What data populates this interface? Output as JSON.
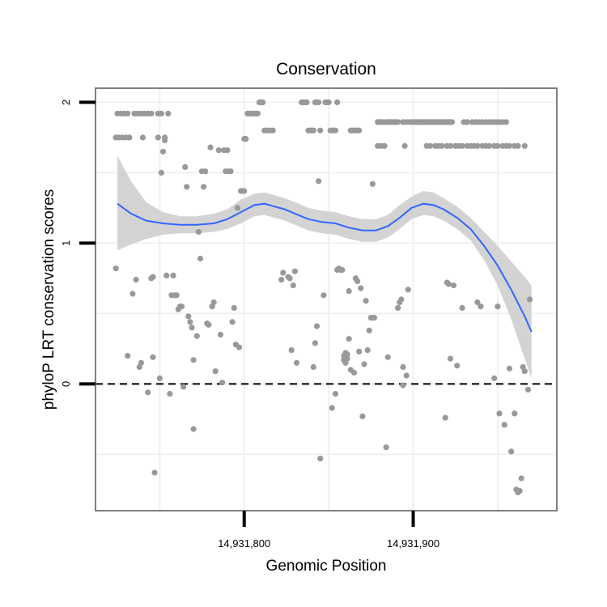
{
  "chart_data": {
    "type": "scatter",
    "title": "Conservation",
    "xlabel": "Genomic Position",
    "ylabel": "phyloP LRT conservation scores",
    "xlim": [
      14931712,
      14931985
    ],
    "ylim": [
      -0.9,
      2.1
    ],
    "x_ticks": [
      {
        "value": 14931800,
        "label": "14,931,800"
      },
      {
        "value": 14931900,
        "label": "14,931,900"
      }
    ],
    "y_ticks": [
      {
        "value": 0,
        "label": "0"
      },
      {
        "value": 1,
        "label": "1"
      },
      {
        "value": 2,
        "label": "2"
      }
    ],
    "grid": true,
    "reference_line": {
      "y": 0,
      "style": "dashed"
    },
    "colors": {
      "points": "#999999",
      "smooth_line": "#3366ff",
      "confidence_band": "#d3d3d3",
      "panel_border": "#7f7f7f",
      "grid": "#f0f0f0",
      "reference_line": "#000000"
    },
    "points": [
      [
        14931725,
        1.92
      ],
      [
        14931727,
        1.92
      ],
      [
        14931729,
        1.92
      ],
      [
        14931731,
        1.92
      ],
      [
        14931735,
        1.92
      ],
      [
        14931737,
        1.92
      ],
      [
        14931739,
        1.92
      ],
      [
        14931741,
        1.92
      ],
      [
        14931743,
        1.92
      ],
      [
        14931745,
        1.92
      ],
      [
        14931749,
        1.92
      ],
      [
        14931751,
        1.92
      ],
      [
        14931755,
        1.92
      ],
      [
        14931724,
        1.75
      ],
      [
        14931726,
        1.75
      ],
      [
        14931728,
        1.75
      ],
      [
        14931730,
        1.75
      ],
      [
        14931732,
        1.75
      ],
      [
        14931740,
        1.75
      ],
      [
        14931749,
        1.75
      ],
      [
        14931753,
        1.75
      ],
      [
        14931724,
        0.82
      ],
      [
        14931731,
        0.2
      ],
      [
        14931734,
        0.64
      ],
      [
        14931736,
        0.74
      ],
      [
        14931738,
        0.12
      ],
      [
        14931739,
        0.15
      ],
      [
        14931743,
        -0.06
      ],
      [
        14931745,
        0.75
      ],
      [
        14931746,
        0.76
      ],
      [
        14931746,
        0.19
      ],
      [
        14931747,
        -0.63
      ],
      [
        14931750,
        0.04
      ],
      [
        14931751,
        1.5
      ],
      [
        14931752,
        1.65
      ],
      [
        14931753,
        1.73
      ],
      [
        14931754,
        0.77
      ],
      [
        14931756,
        -0.07
      ],
      [
        14931757,
        0.63
      ],
      [
        14931758,
        0.77
      ],
      [
        14931759,
        0.63
      ],
      [
        14931760,
        0.63
      ],
      [
        14931761,
        0.53
      ],
      [
        14931762,
        0.55
      ],
      [
        14931763,
        0.55
      ],
      [
        14931764,
        -0.02
      ],
      [
        14931765,
        1.54
      ],
      [
        14931766,
        1.4
      ],
      [
        14931767,
        0.48
      ],
      [
        14931768,
        0.44
      ],
      [
        14931769,
        0.4
      ],
      [
        14931770,
        -0.32
      ],
      [
        14931770,
        0.17
      ],
      [
        14931772,
        0.34
      ],
      [
        14931773,
        1.08
      ],
      [
        14931774,
        0.89
      ],
      [
        14931775,
        1.51
      ],
      [
        14931776,
        1.4
      ],
      [
        14931777,
        1.51
      ],
      [
        14931778,
        0.43
      ],
      [
        14931779,
        0.42
      ],
      [
        14931780,
        1.68
      ],
      [
        14931781,
        0.55
      ],
      [
        14931782,
        0.58
      ],
      [
        14931783,
        0.09
      ],
      [
        14931785,
        1.66
      ],
      [
        14931786,
        0.35
      ],
      [
        14931787,
        0.01
      ],
      [
        14931788,
        1.66
      ],
      [
        14931789,
        1.51
      ],
      [
        14931790,
        1.66
      ],
      [
        14931791,
        1.51
      ],
      [
        14931792,
        1.51
      ],
      [
        14931793,
        0.44
      ],
      [
        14931794,
        0.54
      ],
      [
        14931795,
        0.28
      ],
      [
        14931796,
        1.25
      ],
      [
        14931797,
        0.26
      ],
      [
        14931798,
        1.37
      ],
      [
        14931799,
        1.37
      ],
      [
        14931800,
        1.37
      ],
      [
        14931800,
        1.74
      ],
      [
        14931801,
        1.74
      ],
      [
        14931802,
        1.92
      ],
      [
        14931803,
        1.92
      ],
      [
        14931804,
        1.92
      ],
      [
        14931805,
        1.92
      ],
      [
        14931806,
        1.92
      ],
      [
        14931807,
        1.92
      ],
      [
        14931808,
        1.92
      ],
      [
        14931809,
        2.0
      ],
      [
        14931810,
        2.0
      ],
      [
        14931811,
        2.0
      ],
      [
        14931812,
        1.8
      ],
      [
        14931813,
        1.8
      ],
      [
        14931814,
        1.8
      ],
      [
        14931816,
        1.8
      ],
      [
        14931817,
        1.8
      ],
      [
        14931822,
        0.74
      ],
      [
        14931823,
        0.79
      ],
      [
        14931826,
        0.76
      ],
      [
        14931827,
        0.75
      ],
      [
        14931828,
        0.24
      ],
      [
        14931829,
        0.7
      ],
      [
        14931830,
        0.8
      ],
      [
        14931831,
        0.15
      ],
      [
        14931834,
        2.0
      ],
      [
        14931835,
        2.0
      ],
      [
        14931836,
        2.0
      ],
      [
        14931837,
        2.0
      ],
      [
        14931838,
        1.8
      ],
      [
        14931839,
        1.8
      ],
      [
        14931840,
        1.8
      ],
      [
        14931841,
        1.8
      ],
      [
        14931842,
        2.0
      ],
      [
        14931843,
        2.0
      ],
      [
        14931844,
        2.0
      ],
      [
        14931845,
        1.8
      ],
      [
        14931841,
        0.12
      ],
      [
        14931842,
        0.29
      ],
      [
        14931843,
        0.41
      ],
      [
        14931844,
        1.44
      ],
      [
        14931845,
        -0.53
      ],
      [
        14931847,
        0.63
      ],
      [
        14931848,
        2.0
      ],
      [
        14931849,
        2.0
      ],
      [
        14931850,
        2.0
      ],
      [
        14931851,
        1.8
      ],
      [
        14931852,
        1.8
      ],
      [
        14931853,
        1.8
      ],
      [
        14931854,
        1.8
      ],
      [
        14931855,
        2.0
      ],
      [
        14931852,
        -0.17
      ],
      [
        14931854,
        -0.07
      ],
      [
        14931855,
        0.81
      ],
      [
        14931856,
        0.82
      ],
      [
        14931857,
        0.81
      ],
      [
        14931858,
        0.81
      ],
      [
        14931859,
        0.2
      ],
      [
        14931859,
        0.17
      ],
      [
        14931860,
        0.22
      ],
      [
        14931860,
        0.15
      ],
      [
        14931861,
        0.21
      ],
      [
        14931861,
        0.18
      ],
      [
        14931862,
        0.32
      ],
      [
        14931862,
        0.66
      ],
      [
        14931863,
        1.8
      ],
      [
        14931864,
        1.8
      ],
      [
        14931865,
        1.8
      ],
      [
        14931866,
        1.8
      ],
      [
        14931867,
        1.8
      ],
      [
        14931868,
        1.8
      ],
      [
        14931863,
        0.1
      ],
      [
        14931865,
        0.08
      ],
      [
        14931866,
        0.75
      ],
      [
        14931867,
        0.73
      ],
      [
        14931868,
        0.23
      ],
      [
        14931869,
        0.68
      ],
      [
        14931870,
        -0.23
      ],
      [
        14931871,
        0.14
      ],
      [
        14931872,
        0.59
      ],
      [
        14931873,
        0.24
      ],
      [
        14931874,
        0.38
      ],
      [
        14931875,
        0.47
      ],
      [
        14931876,
        0.47
      ],
      [
        14931876,
        1.42
      ],
      [
        14931877,
        0.47
      ],
      [
        14931879,
        1.86
      ],
      [
        14931880,
        1.86
      ],
      [
        14931881,
        1.86
      ],
      [
        14931882,
        1.86
      ],
      [
        14931879,
        1.69
      ],
      [
        14931881,
        1.69
      ],
      [
        14931883,
        1.69
      ],
      [
        14931884,
        1.86
      ],
      [
        14931885,
        1.86
      ],
      [
        14931886,
        1.86
      ],
      [
        14931887,
        1.86
      ],
      [
        14931888,
        1.86
      ],
      [
        14931889,
        1.86
      ],
      [
        14931890,
        1.86
      ],
      [
        14931891,
        1.86
      ],
      [
        14931884,
        -0.45
      ],
      [
        14931885,
        0.19
      ],
      [
        14931891,
        0.54
      ],
      [
        14931892,
        0.58
      ],
      [
        14931893,
        0.6
      ],
      [
        14931894,
        0.12
      ],
      [
        14931894,
        -0.01
      ],
      [
        14931895,
        1.69
      ],
      [
        14931896,
        0.06
      ],
      [
        14931897,
        0.67
      ],
      [
        14931894,
        1.86
      ],
      [
        14931896,
        1.86
      ],
      [
        14931898,
        1.86
      ],
      [
        14931899,
        1.86
      ],
      [
        14931900,
        1.86
      ],
      [
        14931901,
        1.86
      ],
      [
        14931902,
        1.86
      ],
      [
        14931903,
        1.86
      ],
      [
        14931904,
        1.86
      ],
      [
        14931905,
        1.86
      ],
      [
        14931906,
        1.86
      ],
      [
        14931907,
        1.86
      ],
      [
        14931908,
        1.86
      ],
      [
        14931909,
        1.86
      ],
      [
        14931910,
        1.86
      ],
      [
        14931911,
        1.86
      ],
      [
        14931912,
        1.86
      ],
      [
        14931913,
        1.86
      ],
      [
        14931914,
        1.86
      ],
      [
        14931915,
        1.86
      ],
      [
        14931916,
        1.86
      ],
      [
        14931917,
        1.86
      ],
      [
        14931918,
        1.86
      ],
      [
        14931919,
        1.86
      ],
      [
        14931920,
        1.86
      ],
      [
        14931921,
        1.86
      ],
      [
        14931922,
        1.86
      ],
      [
        14931923,
        1.86
      ],
      [
        14931908,
        1.69
      ],
      [
        14931910,
        1.69
      ],
      [
        14931913,
        1.69
      ],
      [
        14931915,
        1.69
      ],
      [
        14931917,
        1.69
      ],
      [
        14931920,
        1.69
      ],
      [
        14931922,
        1.69
      ],
      [
        14931925,
        1.69
      ],
      [
        14931927,
        1.69
      ],
      [
        14931929,
        1.69
      ],
      [
        14931932,
        1.69
      ],
      [
        14931934,
        1.69
      ],
      [
        14931936,
        1.69
      ],
      [
        14931938,
        1.69
      ],
      [
        14931941,
        1.69
      ],
      [
        14931943,
        1.69
      ],
      [
        14931945,
        1.69
      ],
      [
        14931948,
        1.69
      ],
      [
        14931950,
        1.69
      ],
      [
        14931953,
        1.69
      ],
      [
        14931955,
        1.69
      ],
      [
        14931957,
        1.69
      ],
      [
        14931960,
        1.69
      ],
      [
        14931962,
        1.69
      ],
      [
        14931966,
        1.69
      ],
      [
        14931930,
        1.86
      ],
      [
        14931932,
        1.86
      ],
      [
        14931935,
        1.86
      ],
      [
        14931937,
        1.86
      ],
      [
        14931939,
        1.86
      ],
      [
        14931941,
        1.86
      ],
      [
        14931943,
        1.86
      ],
      [
        14931945,
        1.86
      ],
      [
        14931947,
        1.86
      ],
      [
        14931949,
        1.86
      ],
      [
        14931951,
        1.86
      ],
      [
        14931953,
        1.86
      ],
      [
        14931955,
        1.86
      ],
      [
        14931919,
        -0.24
      ],
      [
        14931920,
        0.72
      ],
      [
        14931921,
        0.71
      ],
      [
        14931922,
        0.18
      ],
      [
        14931924,
        0.7
      ],
      [
        14931926,
        0.13
      ],
      [
        14931929,
        0.54
      ],
      [
        14931938,
        0.58
      ],
      [
        14931940,
        0.55
      ],
      [
        14931948,
        0.04
      ],
      [
        14931950,
        0.55
      ],
      [
        14931951,
        -0.21
      ],
      [
        14931954,
        -0.29
      ],
      [
        14931957,
        0.11
      ],
      [
        14931958,
        -0.48
      ],
      [
        14931960,
        -0.21
      ],
      [
        14931961,
        -0.75
      ],
      [
        14931962,
        -0.77
      ],
      [
        14931963,
        -0.76
      ],
      [
        14931964,
        -0.67
      ],
      [
        14931965,
        0.12
      ],
      [
        14931966,
        0.09
      ],
      [
        14931968,
        -0.04
      ],
      [
        14931969,
        0.6
      ]
    ],
    "smooth": {
      "x": [
        14931725,
        14931733,
        14931742,
        14931752,
        14931762,
        14931772,
        14931782,
        14931790,
        14931798,
        14931806,
        14931812,
        14931818,
        14931824,
        14931830,
        14931838,
        14931846,
        14931854,
        14931862,
        14931870,
        14931878,
        14931885,
        14931892,
        14931899,
        14931906,
        14931912,
        14931918,
        14931926,
        14931934,
        14931942,
        14931950,
        14931958,
        14931966,
        14931970
      ],
      "y": [
        1.28,
        1.21,
        1.16,
        1.14,
        1.13,
        1.13,
        1.14,
        1.17,
        1.22,
        1.27,
        1.28,
        1.26,
        1.24,
        1.21,
        1.17,
        1.15,
        1.14,
        1.11,
        1.09,
        1.09,
        1.12,
        1.18,
        1.25,
        1.28,
        1.27,
        1.24,
        1.18,
        1.1,
        0.98,
        0.84,
        0.67,
        0.48,
        0.37
      ],
      "lower": [
        0.95,
        0.99,
        1.03,
        1.06,
        1.07,
        1.07,
        1.08,
        1.1,
        1.14,
        1.19,
        1.2,
        1.18,
        1.16,
        1.13,
        1.09,
        1.07,
        1.06,
        1.03,
        1.01,
        1.01,
        1.04,
        1.1,
        1.17,
        1.2,
        1.19,
        1.16,
        1.1,
        1.02,
        0.88,
        0.7,
        0.46,
        0.18,
        0.04
      ],
      "upper": [
        1.62,
        1.44,
        1.29,
        1.22,
        1.19,
        1.19,
        1.21,
        1.24,
        1.31,
        1.35,
        1.36,
        1.34,
        1.32,
        1.29,
        1.25,
        1.23,
        1.22,
        1.19,
        1.17,
        1.17,
        1.2,
        1.27,
        1.33,
        1.37,
        1.36,
        1.32,
        1.26,
        1.18,
        1.08,
        0.98,
        0.87,
        0.76,
        0.7
      ]
    }
  }
}
